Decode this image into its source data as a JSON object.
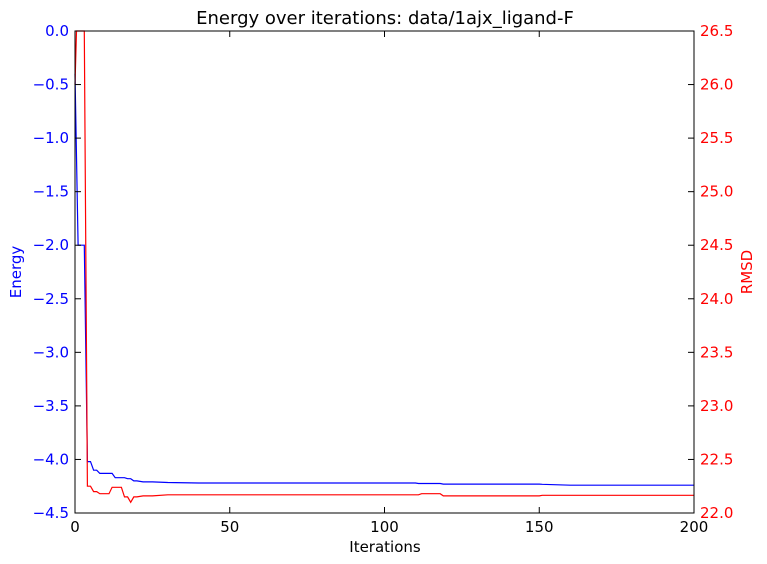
{
  "chart_data": {
    "type": "line",
    "title": "Energy over iterations: data/1ajx_ligand-F",
    "xlabel": "Iterations",
    "ylabel_left": "Energy",
    "ylabel_right": "RMSD",
    "xlim": [
      0,
      200
    ],
    "ylim_left": [
      -4.5,
      0.0
    ],
    "ylim_right": [
      22.0,
      26.5
    ],
    "x_ticks": [
      "0",
      "50",
      "100",
      "150",
      "200"
    ],
    "y_left_ticks": [
      "0.0",
      "−0.5",
      "−1.0",
      "−1.5",
      "−2.0",
      "−2.5",
      "−3.0",
      "−3.5",
      "−4.0",
      "−4.5"
    ],
    "y_right_ticks": [
      "26.5",
      "26.0",
      "25.5",
      "25.0",
      "24.5",
      "24.0",
      "23.5",
      "23.0",
      "22.5",
      "22.0"
    ],
    "grid": false,
    "colors": {
      "energy": "#0000ff",
      "rmsd": "#ff0000",
      "axes": "#000000"
    },
    "series": [
      {
        "axis": "left",
        "color": "#0000ff",
        "x": [
          0,
          1,
          2,
          3,
          4,
          5,
          6,
          7,
          8,
          9,
          10,
          11,
          12,
          13,
          14,
          15,
          16,
          17,
          18,
          19,
          20,
          22,
          25,
          30,
          40,
          50,
          60,
          80,
          100,
          110,
          111,
          118,
          119,
          150,
          151,
          160,
          200
        ],
        "y": [
          -0.4,
          -2.0,
          -2.0,
          -2.0,
          -4.02,
          -4.02,
          -4.1,
          -4.1,
          -4.13,
          -4.13,
          -4.13,
          -4.13,
          -4.13,
          -4.17,
          -4.17,
          -4.17,
          -4.17,
          -4.18,
          -4.18,
          -4.2,
          -4.2,
          -4.21,
          -4.21,
          -4.215,
          -4.22,
          -4.22,
          -4.22,
          -4.22,
          -4.22,
          -4.22,
          -4.225,
          -4.225,
          -4.23,
          -4.23,
          -4.232,
          -4.24,
          -4.24
        ]
      },
      {
        "axis": "right",
        "color": "#ff0000",
        "x": [
          0,
          0.5,
          1,
          2,
          3,
          4,
          5,
          6,
          7,
          8,
          9,
          10,
          11,
          12,
          13,
          14,
          15,
          16,
          17,
          18,
          19,
          20,
          22,
          25,
          30,
          40,
          50,
          100,
          111,
          112,
          118,
          119,
          150,
          151,
          200
        ],
        "y": [
          26.0,
          26.5,
          26.5,
          26.5,
          26.5,
          22.25,
          22.25,
          22.2,
          22.2,
          22.18,
          22.18,
          22.18,
          22.18,
          22.24,
          22.24,
          22.24,
          22.24,
          22.15,
          22.15,
          22.1,
          22.15,
          22.15,
          22.16,
          22.16,
          22.17,
          22.17,
          22.17,
          22.17,
          22.17,
          22.18,
          22.18,
          22.16,
          22.16,
          22.165,
          22.165
        ]
      }
    ]
  }
}
